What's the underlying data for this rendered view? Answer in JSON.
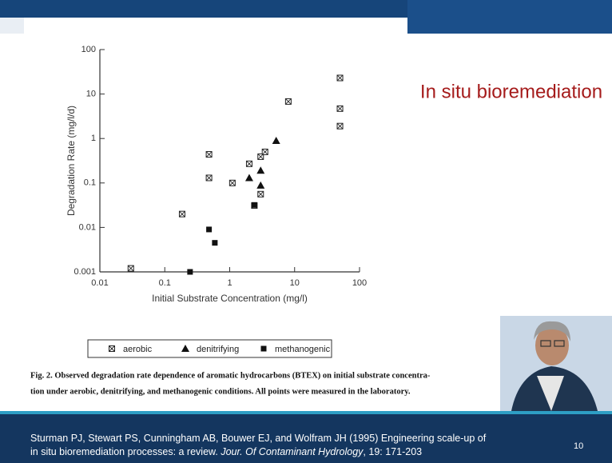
{
  "slide_title": "In situ bioremediation",
  "caption": {
    "lines": [
      "Fig. 2. Observed degradation rate dependence of aromatic hydrocarbons (BTEX) on initial substrate concentra-",
      "tion under aerobic, denitrifying, and methanogenic conditions. All points were measured in the laboratory."
    ]
  },
  "reference": {
    "line1": "Sturman PJ, Stewart PS, Cunningham AB, Bouwer EJ, and Wolfram JH (1995) Engineering scale-up of",
    "line2_start": "in situ bioremediation processes: a review.",
    "journal": "Jour. Of Contaminant Hydrology",
    "line2_end": ", 19: 171-203"
  },
  "page_number": "10",
  "chart_data": {
    "type": "scatter",
    "x_label": "Initial Substrate Concentration (mg/l)",
    "y_label": "Degradation Rate (mg/l/d)",
    "xscale": "log",
    "yscale": "log",
    "xlim": [
      0.01,
      100
    ],
    "ylim": [
      0.001,
      100
    ],
    "xticks": [
      0.01,
      0.1,
      1,
      10,
      100
    ],
    "yticks": [
      0.001,
      0.01,
      0.1,
      1,
      10,
      100
    ],
    "series": [
      {
        "name": "aerobic",
        "color": "#222222",
        "marker": "boxed-x",
        "x": [
          0.03,
          0.185,
          0.48,
          0.48,
          1.1,
          2,
          3,
          3.5,
          3,
          2.4,
          8,
          50,
          50,
          50
        ],
        "values": [
          0.0012,
          0.02,
          0.44,
          0.13,
          0.1,
          0.27,
          0.39,
          0.5,
          0.056,
          0.031,
          6.8,
          23,
          4.7,
          1.9
        ]
      },
      {
        "name": "denitrifying",
        "color": "#111111",
        "marker": "triangle",
        "x": [
          2,
          3,
          3,
          5.2
        ],
        "values": [
          0.13,
          0.19,
          0.088,
          0.89
        ]
      },
      {
        "name": "methanogenic",
        "color": "#111111",
        "marker": "square",
        "x": [
          0.48,
          0.59,
          0.245,
          2.4
        ],
        "values": [
          0.009,
          0.0045,
          0.001,
          0.032
        ]
      }
    ]
  }
}
